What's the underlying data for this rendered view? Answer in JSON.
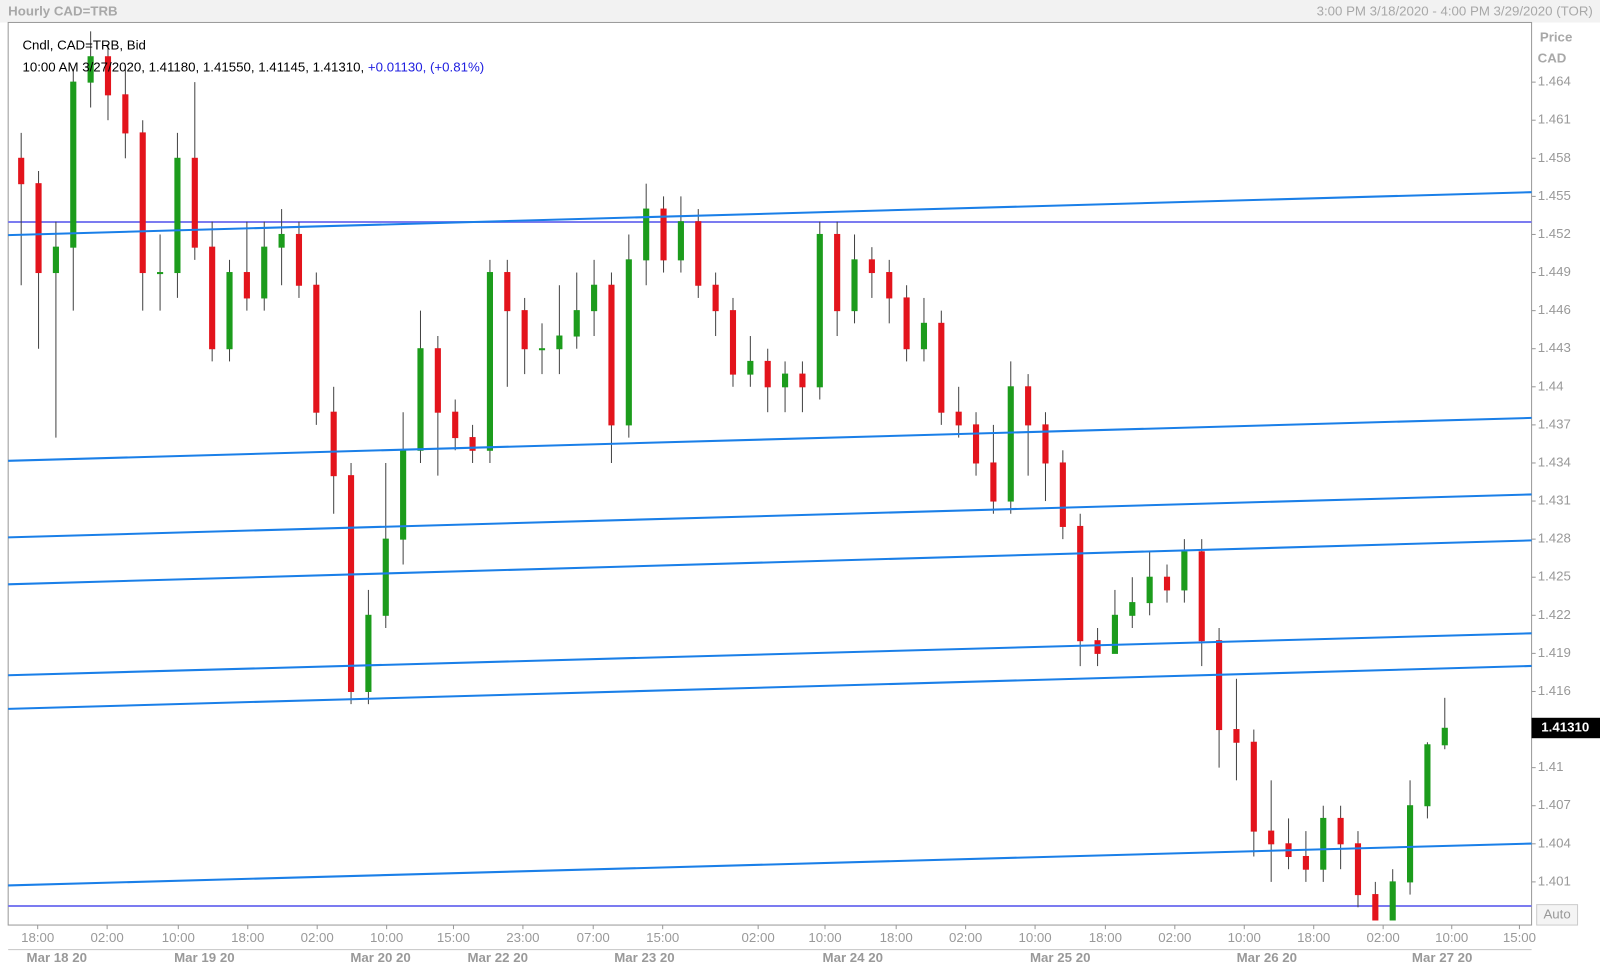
{
  "header": {
    "title": "Hourly CAD=TRB",
    "range": "3:00 PM 3/18/2020 - 4:00 PM 3/29/2020 (TOR)",
    "legend_line1": "Cndl, CAD=TRB, Bid",
    "legend_line2": "10:00 AM 3/27/2020, 1.41180, 1.41550, 1.41145, 1.41310,",
    "legend_change": "+0.01130, (+0.81%)",
    "axis_title": "Price",
    "axis_unit": "CAD",
    "last_price": "1.41310",
    "auto_button": "Auto"
  },
  "chart_data": {
    "type": "candlestick",
    "up_color": "#1c9c1c",
    "down_color": "#e3141c",
    "xlim": [
      -0.5,
      175
    ],
    "ylim": [
      1.3976,
      1.4687
    ],
    "x": [
      1,
      3,
      5,
      7,
      9,
      11,
      13,
      15,
      17,
      19,
      21,
      23,
      25,
      27,
      29,
      31,
      33,
      35,
      37,
      39,
      41,
      43,
      45,
      47,
      49,
      51,
      53,
      55,
      57,
      59,
      61,
      63,
      65,
      67,
      69,
      71,
      73,
      75,
      77,
      79,
      81,
      83,
      85,
      87,
      89,
      91,
      93,
      95,
      97,
      99,
      101,
      103,
      105,
      107,
      109,
      111,
      113,
      115,
      117,
      119,
      121,
      123,
      125,
      127,
      129,
      131,
      133,
      135,
      137,
      139,
      141,
      143,
      145,
      147,
      149,
      151,
      153,
      155,
      157,
      159,
      161,
      163,
      165
    ],
    "open": [
      1.458,
      1.456,
      1.449,
      1.451,
      1.464,
      1.466,
      1.463,
      1.46,
      1.449,
      1.449,
      1.458,
      1.451,
      1.443,
      1.449,
      1.447,
      1.451,
      1.452,
      1.448,
      1.438,
      1.433,
      1.416,
      1.422,
      1.428,
      1.435,
      1.443,
      1.438,
      1.436,
      1.435,
      1.449,
      1.446,
      1.443,
      1.443,
      1.444,
      1.446,
      1.448,
      1.437,
      1.45,
      1.454,
      1.45,
      1.453,
      1.448,
      1.446,
      1.441,
      1.442,
      1.44,
      1.441,
      1.44,
      1.452,
      1.446,
      1.45,
      1.449,
      1.447,
      1.443,
      1.445,
      1.438,
      1.437,
      1.434,
      1.431,
      1.44,
      1.437,
      1.434,
      1.429,
      1.42,
      1.419,
      1.422,
      1.423,
      1.425,
      1.424,
      1.427,
      1.42,
      1.413,
      1.412,
      1.405,
      1.404,
      1.403,
      1.402,
      1.406,
      1.404,
      1.4,
      1.398,
      1.401,
      1.407,
      1.4118
    ],
    "high": [
      1.46,
      1.457,
      1.453,
      1.465,
      1.468,
      1.467,
      1.465,
      1.461,
      1.452,
      1.46,
      1.464,
      1.453,
      1.45,
      1.453,
      1.453,
      1.454,
      1.453,
      1.449,
      1.44,
      1.434,
      1.424,
      1.434,
      1.438,
      1.446,
      1.444,
      1.439,
      1.437,
      1.45,
      1.45,
      1.447,
      1.445,
      1.448,
      1.449,
      1.45,
      1.449,
      1.452,
      1.456,
      1.455,
      1.455,
      1.454,
      1.449,
      1.447,
      1.444,
      1.443,
      1.442,
      1.442,
      1.453,
      1.453,
      1.452,
      1.451,
      1.45,
      1.448,
      1.447,
      1.446,
      1.44,
      1.438,
      1.437,
      1.442,
      1.441,
      1.438,
      1.435,
      1.43,
      1.421,
      1.424,
      1.425,
      1.427,
      1.426,
      1.428,
      1.428,
      1.421,
      1.417,
      1.413,
      1.409,
      1.406,
      1.405,
      1.407,
      1.407,
      1.405,
      1.401,
      1.402,
      1.409,
      1.412,
      1.4155
    ],
    "low": [
      1.448,
      1.443,
      1.436,
      1.446,
      1.462,
      1.461,
      1.458,
      1.446,
      1.446,
      1.447,
      1.45,
      1.442,
      1.442,
      1.446,
      1.446,
      1.448,
      1.447,
      1.437,
      1.43,
      1.415,
      1.415,
      1.421,
      1.426,
      1.434,
      1.433,
      1.435,
      1.434,
      1.434,
      1.44,
      1.441,
      1.441,
      1.441,
      1.443,
      1.444,
      1.434,
      1.436,
      1.448,
      1.449,
      1.449,
      1.447,
      1.444,
      1.44,
      1.44,
      1.438,
      1.438,
      1.438,
      1.439,
      1.444,
      1.445,
      1.447,
      1.445,
      1.442,
      1.442,
      1.437,
      1.436,
      1.433,
      1.43,
      1.43,
      1.433,
      1.431,
      1.428,
      1.418,
      1.418,
      1.419,
      1.421,
      1.422,
      1.423,
      1.423,
      1.418,
      1.41,
      1.409,
      1.403,
      1.401,
      1.402,
      1.401,
      1.401,
      1.402,
      1.399,
      1.398,
      1.398,
      1.4,
      1.406,
      1.41145
    ],
    "close": [
      1.456,
      1.449,
      1.451,
      1.464,
      1.466,
      1.463,
      1.46,
      1.449,
      1.449,
      1.458,
      1.451,
      1.443,
      1.449,
      1.447,
      1.451,
      1.452,
      1.448,
      1.438,
      1.433,
      1.416,
      1.422,
      1.428,
      1.435,
      1.443,
      1.438,
      1.436,
      1.435,
      1.449,
      1.446,
      1.443,
      1.443,
      1.444,
      1.446,
      1.448,
      1.437,
      1.45,
      1.454,
      1.45,
      1.453,
      1.448,
      1.446,
      1.441,
      1.442,
      1.44,
      1.441,
      1.44,
      1.452,
      1.446,
      1.45,
      1.449,
      1.447,
      1.443,
      1.445,
      1.438,
      1.437,
      1.434,
      1.431,
      1.44,
      1.437,
      1.434,
      1.429,
      1.42,
      1.419,
      1.422,
      1.423,
      1.425,
      1.424,
      1.427,
      1.42,
      1.413,
      1.412,
      1.405,
      1.404,
      1.403,
      1.402,
      1.406,
      1.404,
      1.4,
      1.398,
      1.401,
      1.407,
      1.4118,
      1.4131
    ],
    "trend_color": "#1a7fe8",
    "trendlines": [
      [
        1.45195,
        1.45533
      ],
      [
        1.43417,
        1.43755
      ],
      [
        1.42814,
        1.43152
      ],
      [
        1.42444,
        1.4279
      ],
      [
        1.41728,
        1.42058
      ],
      [
        1.41463,
        1.41801
      ],
      [
        1.40072,
        1.40402
      ]
    ],
    "level_color": "#7b7bf0",
    "levels": [
      1.45298,
      1.3991
    ],
    "yticks": [
      1.464,
      1.461,
      1.458,
      1.455,
      1.452,
      1.449,
      1.446,
      1.443,
      1.44,
      1.437,
      1.434,
      1.431,
      1.428,
      1.425,
      1.422,
      1.419,
      1.416,
      1.41,
      1.407,
      1.404,
      1.401
    ],
    "xticks": [
      {
        "value": 2.9,
        "label": "18:00"
      },
      {
        "value": 10.9,
        "label": "02:00"
      },
      {
        "value": 19.1,
        "label": "10:00"
      },
      {
        "value": 27.1,
        "label": "18:00"
      },
      {
        "value": 35.1,
        "label": "02:00"
      },
      {
        "value": 43.1,
        "label": "10:00"
      },
      {
        "value": 50.8,
        "label": "15:00"
      },
      {
        "value": 58.8,
        "label": "23:00"
      },
      {
        "value": 66.9,
        "label": "07:00"
      },
      {
        "value": 74.9,
        "label": "15:00"
      },
      {
        "value": 85.9,
        "label": "02:00"
      },
      {
        "value": 93.6,
        "label": "10:00"
      },
      {
        "value": 101.8,
        "label": "18:00"
      },
      {
        "value": 109.8,
        "label": "02:00"
      },
      {
        "value": 117.8,
        "label": "10:00"
      },
      {
        "value": 125.9,
        "label": "18:00"
      },
      {
        "value": 133.9,
        "label": "02:00"
      },
      {
        "value": 141.9,
        "label": "10:00"
      },
      {
        "value": 149.9,
        "label": "18:00"
      },
      {
        "value": 157.9,
        "label": "02:00"
      },
      {
        "value": 165.8,
        "label": "10:00"
      },
      {
        "value": 173.6,
        "label": "15:00"
      }
    ],
    "date_ticks": [
      {
        "value": 5.1,
        "label": "Mar 18 20"
      },
      {
        "value": 22.1,
        "label": "Mar 19 20"
      },
      {
        "value": 42.4,
        "label": "Mar 20 20"
      },
      {
        "value": 55.9,
        "label": "Mar 22 20"
      },
      {
        "value": 72.8,
        "label": "Mar 23 20"
      },
      {
        "value": 96.8,
        "label": "Mar 24 20"
      },
      {
        "value": 120.7,
        "label": "Mar 25 20"
      },
      {
        "value": 144.5,
        "label": "Mar 26 20"
      },
      {
        "value": 164.7,
        "label": "Mar 27 20"
      }
    ]
  }
}
